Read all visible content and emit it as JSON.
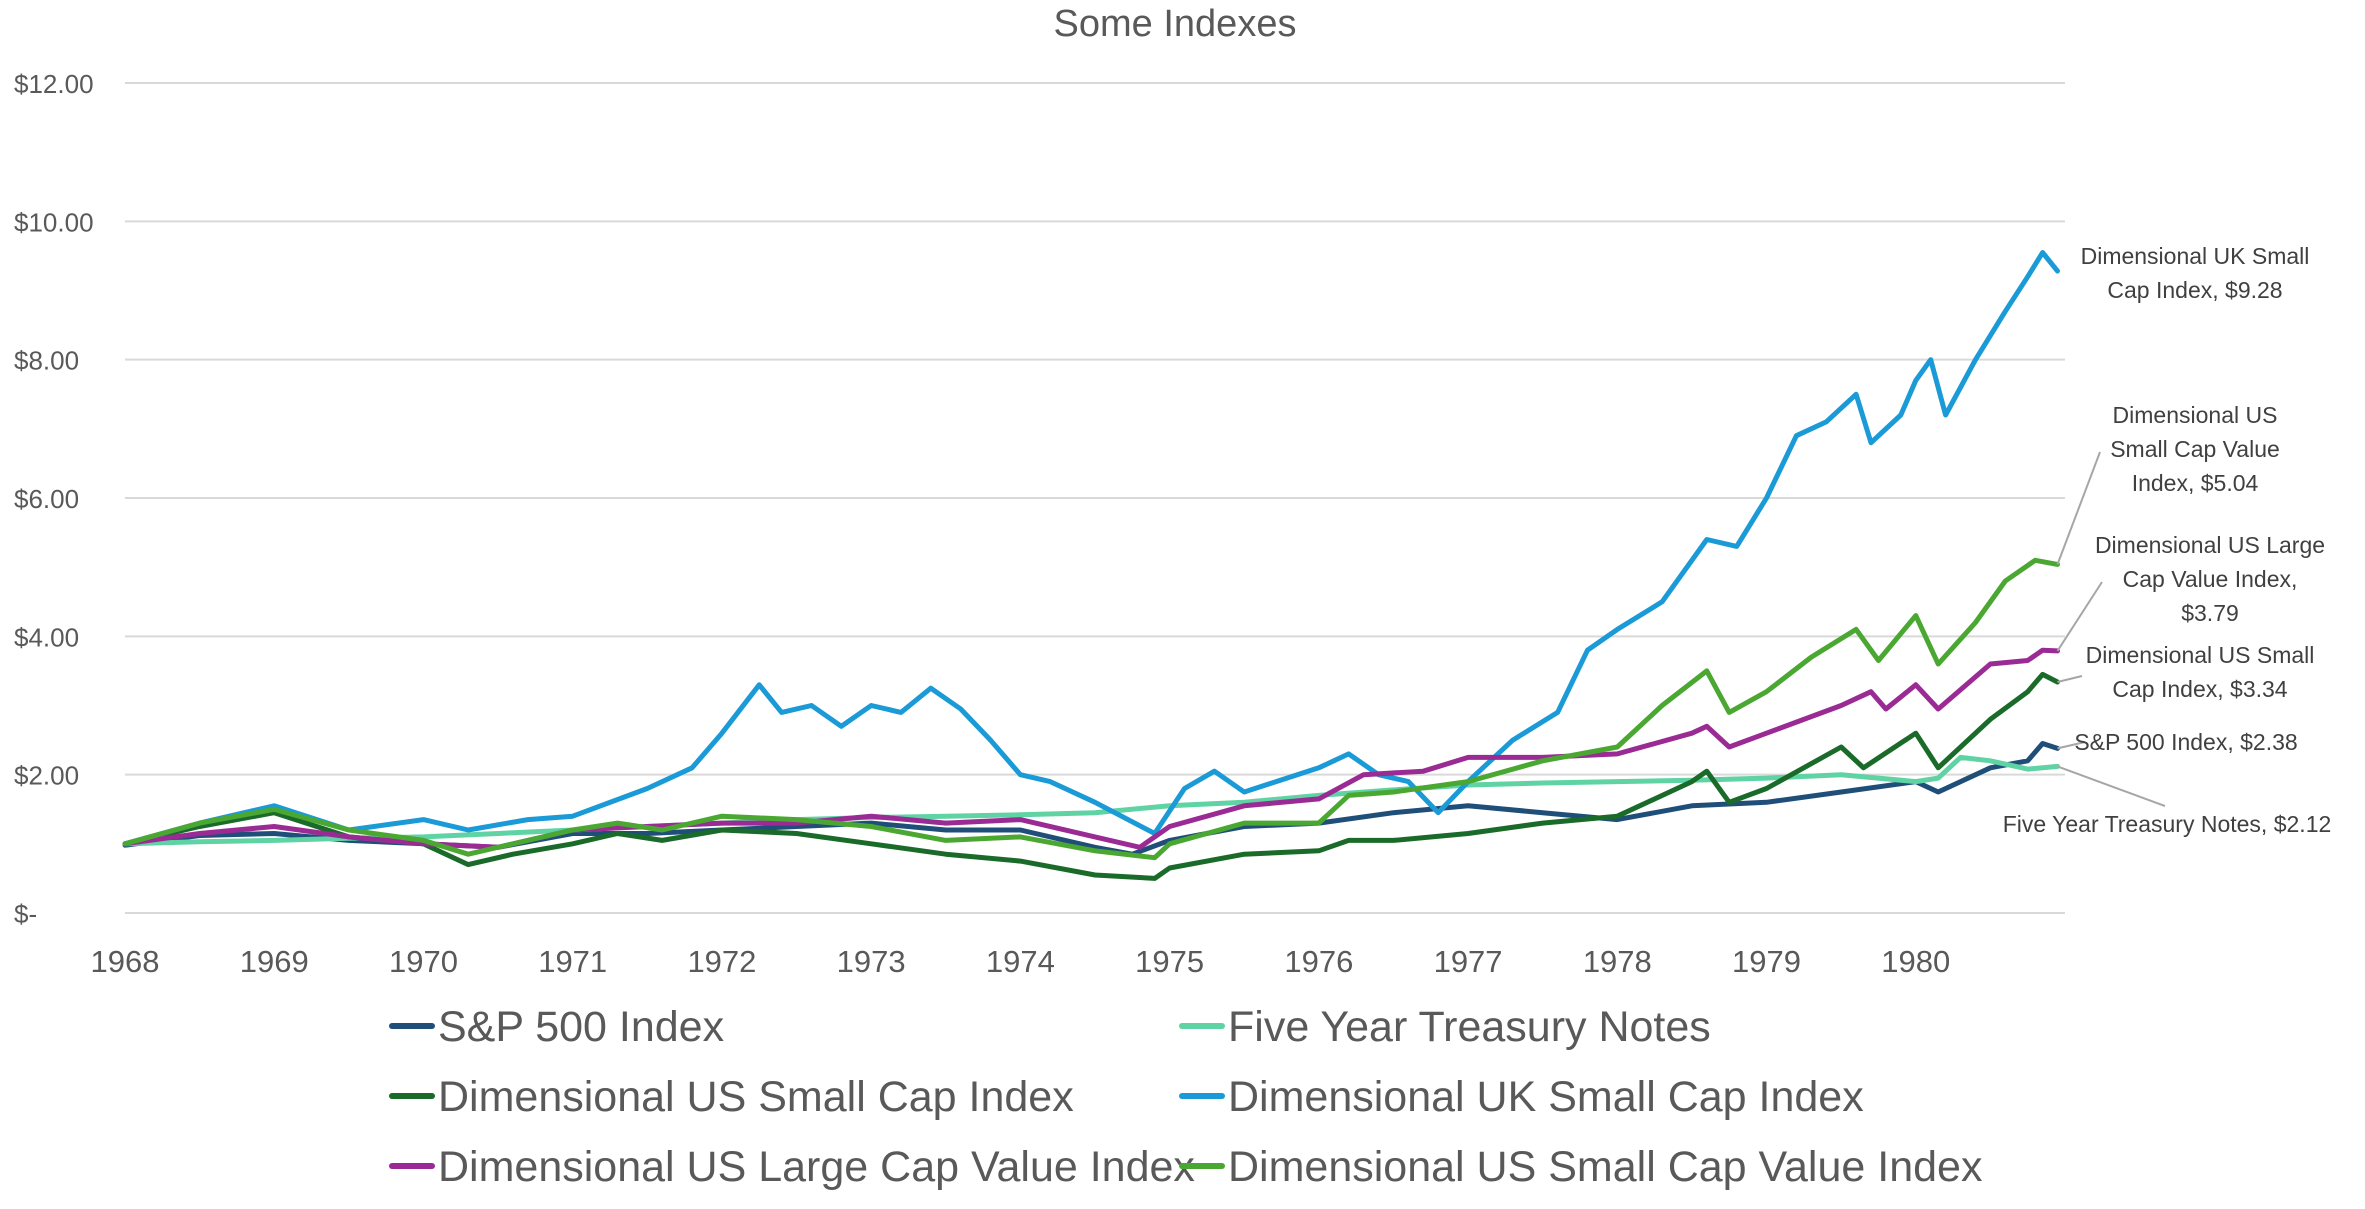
{
  "chart_data": {
    "type": "line",
    "title": "Some Indexes",
    "xlabel": "",
    "ylabel": "",
    "grid": true,
    "legend_position": "bottom",
    "x_ticks": [
      "1968",
      "1969",
      "1970",
      "1971",
      "1972",
      "1973",
      "1974",
      "1975",
      "1976",
      "1977",
      "1978",
      "1979",
      "1980"
    ],
    "xlim": [
      1968,
      1981
    ],
    "ylim": [
      0,
      12
    ],
    "y_ticks": [
      {
        "value": 12,
        "label": "$12.00"
      },
      {
        "value": 10,
        "label": "$10.00"
      },
      {
        "value": 8,
        "label": "$8.00"
      },
      {
        "value": 6,
        "label": "$6.00"
      },
      {
        "value": 4,
        "label": "$4.00"
      },
      {
        "value": 2,
        "label": "$2.00"
      },
      {
        "value": 0,
        "label": "$-"
      }
    ],
    "series": [
      {
        "name": "S&P 500 Index",
        "color": "#1f4e79",
        "points": [
          [
            1968,
            0.98
          ],
          [
            1968.5,
            1.12
          ],
          [
            1969,
            1.15
          ],
          [
            1969.5,
            1.05
          ],
          [
            1970,
            1.0
          ],
          [
            1970.5,
            0.95
          ],
          [
            1971,
            1.15
          ],
          [
            1971.5,
            1.15
          ],
          [
            1972,
            1.2
          ],
          [
            1972.5,
            1.25
          ],
          [
            1973,
            1.3
          ],
          [
            1973.5,
            1.2
          ],
          [
            1974,
            1.2
          ],
          [
            1974.5,
            0.95
          ],
          [
            1974.75,
            0.85
          ],
          [
            1975,
            1.05
          ],
          [
            1975.5,
            1.25
          ],
          [
            1976,
            1.3
          ],
          [
            1976.5,
            1.45
          ],
          [
            1977,
            1.55
          ],
          [
            1977.5,
            1.45
          ],
          [
            1978,
            1.35
          ],
          [
            1978.5,
            1.55
          ],
          [
            1979,
            1.6
          ],
          [
            1979.5,
            1.75
          ],
          [
            1980,
            1.9
          ],
          [
            1980.15,
            1.75
          ],
          [
            1980.5,
            2.1
          ],
          [
            1980.75,
            2.2
          ],
          [
            1980.85,
            2.45
          ],
          [
            1980.95,
            2.38
          ]
        ],
        "end_label": "S&P 500 Index,  $2.38"
      },
      {
        "name": "Five Year Treasury Notes",
        "color": "#5fd3a4",
        "points": [
          [
            1968,
            1.0
          ],
          [
            1968.5,
            1.03
          ],
          [
            1969,
            1.05
          ],
          [
            1969.5,
            1.08
          ],
          [
            1970,
            1.1
          ],
          [
            1970.5,
            1.15
          ],
          [
            1971,
            1.2
          ],
          [
            1971.5,
            1.25
          ],
          [
            1972,
            1.3
          ],
          [
            1972.5,
            1.35
          ],
          [
            1973,
            1.38
          ],
          [
            1973.5,
            1.4
          ],
          [
            1974,
            1.42
          ],
          [
            1974.5,
            1.45
          ],
          [
            1975,
            1.55
          ],
          [
            1975.5,
            1.6
          ],
          [
            1976,
            1.7
          ],
          [
            1976.5,
            1.78
          ],
          [
            1977,
            1.85
          ],
          [
            1977.5,
            1.88
          ],
          [
            1978,
            1.9
          ],
          [
            1978.5,
            1.92
          ],
          [
            1979,
            1.95
          ],
          [
            1979.5,
            2.0
          ],
          [
            1980,
            1.9
          ],
          [
            1980.15,
            1.95
          ],
          [
            1980.3,
            2.25
          ],
          [
            1980.5,
            2.2
          ],
          [
            1980.75,
            2.08
          ],
          [
            1980.95,
            2.12
          ]
        ],
        "end_label": "Five Year Treasury Notes,  $2.12"
      },
      {
        "name": "Dimensional US Small Cap Index",
        "color": "#1a6b2a",
        "points": [
          [
            1968,
            1.0
          ],
          [
            1968.5,
            1.25
          ],
          [
            1969,
            1.45
          ],
          [
            1969.5,
            1.1
          ],
          [
            1970,
            1.0
          ],
          [
            1970.3,
            0.7
          ],
          [
            1970.6,
            0.85
          ],
          [
            1971,
            1.0
          ],
          [
            1971.3,
            1.15
          ],
          [
            1971.6,
            1.05
          ],
          [
            1972,
            1.2
          ],
          [
            1972.5,
            1.15
          ],
          [
            1973,
            1.0
          ],
          [
            1973.5,
            0.85
          ],
          [
            1974,
            0.75
          ],
          [
            1974.5,
            0.55
          ],
          [
            1974.9,
            0.5
          ],
          [
            1975,
            0.65
          ],
          [
            1975.5,
            0.85
          ],
          [
            1976,
            0.9
          ],
          [
            1976.2,
            1.05
          ],
          [
            1976.5,
            1.05
          ],
          [
            1977,
            1.15
          ],
          [
            1977.5,
            1.3
          ],
          [
            1978,
            1.4
          ],
          [
            1978.5,
            1.9
          ],
          [
            1978.6,
            2.05
          ],
          [
            1978.75,
            1.6
          ],
          [
            1979,
            1.8
          ],
          [
            1979.5,
            2.4
          ],
          [
            1979.65,
            2.1
          ],
          [
            1980,
            2.6
          ],
          [
            1980.15,
            2.1
          ],
          [
            1980.5,
            2.8
          ],
          [
            1980.75,
            3.2
          ],
          [
            1980.85,
            3.45
          ],
          [
            1980.95,
            3.34
          ]
        ],
        "end_label": "Dimensional US Small Cap Index,  $3.34"
      },
      {
        "name": "Dimensional UK Small Cap Index",
        "color": "#1a9ad6",
        "points": [
          [
            1968,
            1.0
          ],
          [
            1968.5,
            1.3
          ],
          [
            1969,
            1.55
          ],
          [
            1969.5,
            1.2
          ],
          [
            1970,
            1.35
          ],
          [
            1970.3,
            1.2
          ],
          [
            1970.7,
            1.35
          ],
          [
            1971,
            1.4
          ],
          [
            1971.5,
            1.8
          ],
          [
            1971.8,
            2.1
          ],
          [
            1972,
            2.6
          ],
          [
            1972.25,
            3.3
          ],
          [
            1972.4,
            2.9
          ],
          [
            1972.6,
            3.0
          ],
          [
            1972.8,
            2.7
          ],
          [
            1973,
            3.0
          ],
          [
            1973.2,
            2.9
          ],
          [
            1973.4,
            3.25
          ],
          [
            1973.6,
            2.95
          ],
          [
            1973.8,
            2.5
          ],
          [
            1974,
            2.0
          ],
          [
            1974.2,
            1.9
          ],
          [
            1974.5,
            1.6
          ],
          [
            1974.9,
            1.15
          ],
          [
            1975.1,
            1.8
          ],
          [
            1975.3,
            2.05
          ],
          [
            1975.5,
            1.75
          ],
          [
            1976,
            2.1
          ],
          [
            1976.2,
            2.3
          ],
          [
            1976.4,
            2.0
          ],
          [
            1976.6,
            1.9
          ],
          [
            1976.8,
            1.45
          ],
          [
            1977,
            1.9
          ],
          [
            1977.3,
            2.5
          ],
          [
            1977.6,
            2.9
          ],
          [
            1977.8,
            3.8
          ],
          [
            1978,
            4.1
          ],
          [
            1978.3,
            4.5
          ],
          [
            1978.6,
            5.4
          ],
          [
            1978.8,
            5.3
          ],
          [
            1979,
            6.0
          ],
          [
            1979.2,
            6.9
          ],
          [
            1979.4,
            7.1
          ],
          [
            1979.6,
            7.5
          ],
          [
            1979.7,
            6.8
          ],
          [
            1979.9,
            7.2
          ],
          [
            1980,
            7.7
          ],
          [
            1980.1,
            8.0
          ],
          [
            1980.2,
            7.2
          ],
          [
            1980.4,
            8.0
          ],
          [
            1980.6,
            8.7
          ],
          [
            1980.75,
            9.2
          ],
          [
            1980.85,
            9.55
          ],
          [
            1980.95,
            9.28
          ]
        ],
        "end_label": "Dimensional UK Small Cap Index,  $9.28"
      },
      {
        "name": "Dimensional US Large Cap Value Index",
        "color": "#9b2b94",
        "points": [
          [
            1968,
            1.0
          ],
          [
            1968.5,
            1.15
          ],
          [
            1969,
            1.25
          ],
          [
            1969.5,
            1.1
          ],
          [
            1970,
            1.0
          ],
          [
            1970.5,
            0.95
          ],
          [
            1971,
            1.2
          ],
          [
            1971.5,
            1.25
          ],
          [
            1972,
            1.3
          ],
          [
            1972.5,
            1.3
          ],
          [
            1973,
            1.4
          ],
          [
            1973.5,
            1.3
          ],
          [
            1974,
            1.35
          ],
          [
            1974.5,
            1.1
          ],
          [
            1974.8,
            0.95
          ],
          [
            1975,
            1.25
          ],
          [
            1975.5,
            1.55
          ],
          [
            1976,
            1.65
          ],
          [
            1976.3,
            2.0
          ],
          [
            1976.7,
            2.05
          ],
          [
            1977,
            2.25
          ],
          [
            1977.5,
            2.25
          ],
          [
            1978,
            2.3
          ],
          [
            1978.5,
            2.6
          ],
          [
            1978.6,
            2.7
          ],
          [
            1978.75,
            2.4
          ],
          [
            1979,
            2.6
          ],
          [
            1979.5,
            3.0
          ],
          [
            1979.7,
            3.2
          ],
          [
            1979.8,
            2.95
          ],
          [
            1980,
            3.3
          ],
          [
            1980.15,
            2.95
          ],
          [
            1980.5,
            3.6
          ],
          [
            1980.75,
            3.65
          ],
          [
            1980.85,
            3.8
          ],
          [
            1980.95,
            3.79
          ]
        ],
        "end_label": "Dimensional US Large Cap Value Index,  $3.79"
      },
      {
        "name": "Dimensional US Small Cap Value Index",
        "color": "#4aa832",
        "points": [
          [
            1968,
            1.0
          ],
          [
            1968.5,
            1.3
          ],
          [
            1969,
            1.5
          ],
          [
            1969.5,
            1.2
          ],
          [
            1970,
            1.05
          ],
          [
            1970.3,
            0.85
          ],
          [
            1970.6,
            1.0
          ],
          [
            1971,
            1.2
          ],
          [
            1971.3,
            1.3
          ],
          [
            1971.6,
            1.2
          ],
          [
            1972,
            1.4
          ],
          [
            1972.5,
            1.35
          ],
          [
            1973,
            1.25
          ],
          [
            1973.5,
            1.05
          ],
          [
            1974,
            1.1
          ],
          [
            1974.5,
            0.9
          ],
          [
            1974.9,
            0.8
          ],
          [
            1975,
            1.0
          ],
          [
            1975.5,
            1.3
          ],
          [
            1976,
            1.3
          ],
          [
            1976.2,
            1.7
          ],
          [
            1976.5,
            1.75
          ],
          [
            1977,
            1.9
          ],
          [
            1977.5,
            2.2
          ],
          [
            1978,
            2.4
          ],
          [
            1978.3,
            3.0
          ],
          [
            1978.6,
            3.5
          ],
          [
            1978.75,
            2.9
          ],
          [
            1979,
            3.2
          ],
          [
            1979.3,
            3.7
          ],
          [
            1979.6,
            4.1
          ],
          [
            1979.75,
            3.65
          ],
          [
            1980,
            4.3
          ],
          [
            1980.15,
            3.6
          ],
          [
            1980.4,
            4.2
          ],
          [
            1980.6,
            4.8
          ],
          [
            1980.8,
            5.1
          ],
          [
            1980.95,
            5.04
          ]
        ],
        "end_label": "Dimensional US Small Cap Value Index,  $5.04"
      }
    ],
    "end_labels": [
      {
        "series": "Dimensional UK Small Cap Index",
        "lines": [
          "Dimensional UK Small",
          "Cap Index,  $9.28"
        ]
      },
      {
        "series": "Dimensional US Small Cap Value Index",
        "lines": [
          "Dimensional US",
          "Small Cap Value",
          "Index,  $5.04"
        ]
      },
      {
        "series": "Dimensional US Large Cap Value Index",
        "lines": [
          "Dimensional US Large",
          "Cap Value Index,",
          "$3.79"
        ]
      },
      {
        "series": "Dimensional US Small Cap Index",
        "lines": [
          "Dimensional US Small",
          "Cap Index,  $3.34"
        ]
      },
      {
        "series": "S&P 500 Index",
        "lines": [
          "S&P 500 Index,  $2.38"
        ]
      },
      {
        "series": "Five Year Treasury Notes",
        "lines": [
          "Five Year Treasury Notes,  $2.12"
        ]
      }
    ]
  }
}
